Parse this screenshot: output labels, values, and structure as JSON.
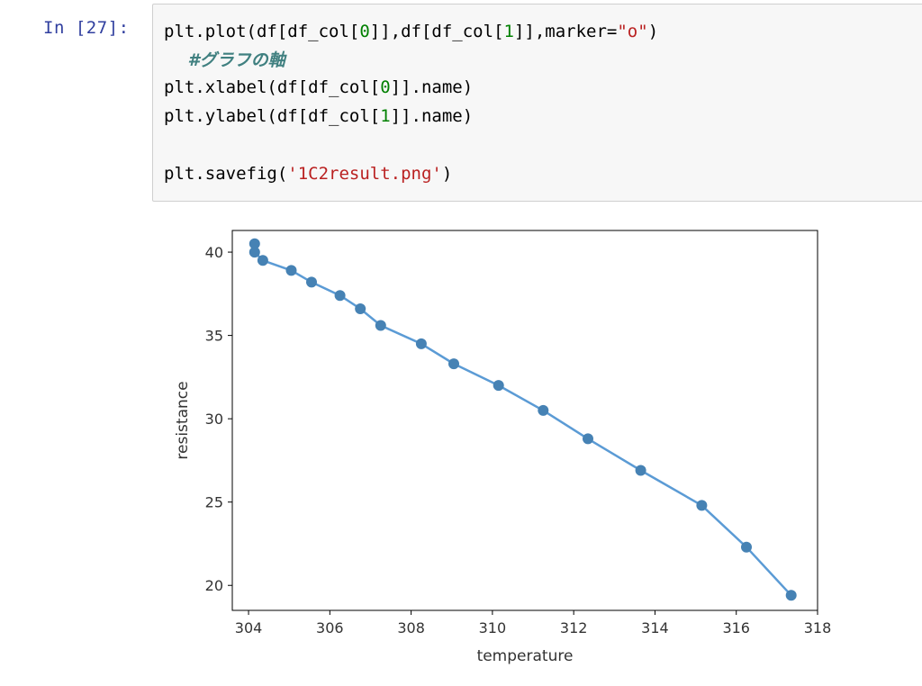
{
  "prompt": "In [27]:",
  "code": {
    "line1": {
      "p1": "plt.plot(df[df_col[",
      "n1": "0",
      "p2": "]],df[df_col[",
      "n2": "1",
      "p3": "]],marker=",
      "s1": "\"o\"",
      "p4": ")"
    },
    "comment": "    #グラフの軸",
    "line2": {
      "p1": "plt.xlabel(df[df_col[",
      "n1": "0",
      "p2": "]].name)"
    },
    "line3": {
      "p1": "plt.ylabel(df[df_col[",
      "n1": "1",
      "p2": "]].name)"
    },
    "line4": {
      "p1": "plt.savefig(",
      "s1": "'1C2result.png'",
      "p2": ")"
    }
  },
  "colors": {
    "series": "#4682b4",
    "line": "#5b9bd5",
    "string": "#ba2121",
    "number": "#008000",
    "comment": "#408080",
    "prompt": "#303f9f"
  },
  "chart_data": {
    "type": "line",
    "marker": "o",
    "xlabel": "temperature",
    "ylabel": "resistance",
    "xlim": [
      303.6,
      318.0
    ],
    "ylim": [
      18.5,
      41.3
    ],
    "xticks": [
      304,
      306,
      308,
      310,
      312,
      314,
      316,
      318
    ],
    "yticks": [
      20,
      25,
      30,
      35,
      40
    ],
    "grid": false,
    "x": [
      304.15,
      304.15,
      304.35,
      305.05,
      305.55,
      306.25,
      306.75,
      307.25,
      308.25,
      309.05,
      310.15,
      311.25,
      312.35,
      313.65,
      315.15,
      316.25,
      317.35
    ],
    "y": [
      40.5,
      40.0,
      39.5,
      38.9,
      38.2,
      37.4,
      36.6,
      35.6,
      34.5,
      33.3,
      32.0,
      30.5,
      28.8,
      26.9,
      24.8,
      22.3,
      19.4
    ]
  }
}
